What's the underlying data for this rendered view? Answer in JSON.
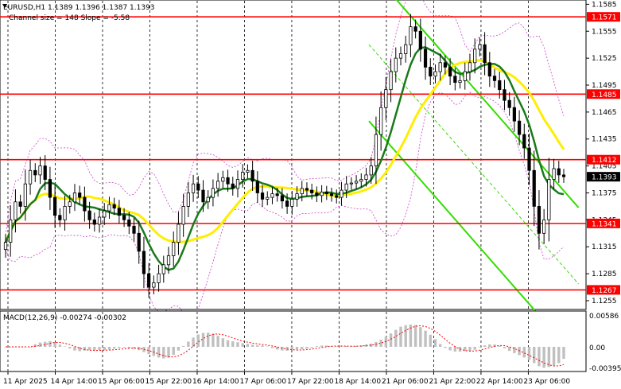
{
  "header": {
    "symbol_line": "EURUSD,H1  1.1389 1.1396 1.1387 1.1393",
    "channel_line": "Channel size = 148 Slope = -5.58"
  },
  "macd": {
    "label": "MACD(12,26,9) -0.00274 -0.00302",
    "ticks": [
      "0.00586",
      "0.00",
      "-0.00395"
    ]
  },
  "colors": {
    "candle": "#000000",
    "level_line": "#ff0000",
    "level_badge_bg": "#ff0000",
    "current_badge_bg": "#000000",
    "ma_fast": "#1a7a1a",
    "ma_slow": "#ffee00",
    "bollinger": "#cc44cc",
    "channel": "#33dd00",
    "macd_hist": "#c0c0c0",
    "macd_signal": "#ff0000",
    "grid": "#000000"
  },
  "chart_data": {
    "type": "candlestick",
    "title": "EURUSD,H1",
    "x_tick_labels": [
      "11 Apr 2025",
      "14 Apr 14:00",
      "15 Apr 06:00",
      "15 Apr 22:00",
      "16 Apr 14:00",
      "17 Apr 06:00",
      "17 Apr 22:00",
      "18 Apr 14:00",
      "21 Apr 06:00",
      "21 Apr 22:00",
      "22 Apr 14:00",
      "23 Apr 06:00"
    ],
    "y_tick_labels": [
      "1.1585",
      "1.1555",
      "1.1525",
      "1.1495",
      "1.1465",
      "1.1435",
      "1.1405",
      "1.1375",
      "1.1345",
      "1.1315",
      "1.1285",
      "1.1255"
    ],
    "ylim": [
      1.1247,
      1.1588
    ],
    "levels": [
      "1.1571",
      "1.1485",
      "1.1412",
      "1.1341",
      "1.1267"
    ],
    "current_price": "1.1393",
    "price_path": [
      1.132,
      1.1345,
      1.1365,
      1.136,
      1.1385,
      1.14,
      1.1395,
      1.1405,
      1.139,
      1.137,
      1.135,
      1.1345,
      1.136,
      1.1365,
      1.1375,
      1.137,
      1.1355,
      1.1345,
      1.134,
      1.1348,
      1.1355,
      1.1362,
      1.1358,
      1.135,
      1.1345,
      1.1338,
      1.133,
      1.131,
      1.1285,
      1.127,
      1.1275,
      1.1285,
      1.1295,
      1.1305,
      1.132,
      1.134,
      1.136,
      1.1375,
      1.1385,
      1.1378,
      1.1365,
      1.137,
      1.138,
      1.1388,
      1.1392,
      1.1385,
      1.138,
      1.139,
      1.1398,
      1.14,
      1.1388,
      1.1375,
      1.1368,
      1.137,
      1.1374,
      1.1372,
      1.1366,
      1.136,
      1.1368,
      1.1374,
      1.138,
      1.1378,
      1.1375,
      1.1372,
      1.1376,
      1.1374,
      1.1372,
      1.137,
      1.1378,
      1.1385,
      1.1386,
      1.1388,
      1.139,
      1.1395,
      1.1405,
      1.144,
      1.147,
      1.149,
      1.151,
      1.1525,
      1.153,
      1.154,
      1.156,
      1.1555,
      1.1535,
      1.1515,
      1.1505,
      1.151,
      1.152,
      1.1515,
      1.1505,
      1.1498,
      1.15,
      1.151,
      1.152,
      1.1535,
      1.154,
      1.152,
      1.1505,
      1.15,
      1.149,
      1.1478,
      1.147,
      1.1455,
      1.144,
      1.1425,
      1.14,
      1.136,
      1.133,
      1.1345,
      1.139,
      1.1402,
      1.1395,
      1.1393
    ]
  }
}
